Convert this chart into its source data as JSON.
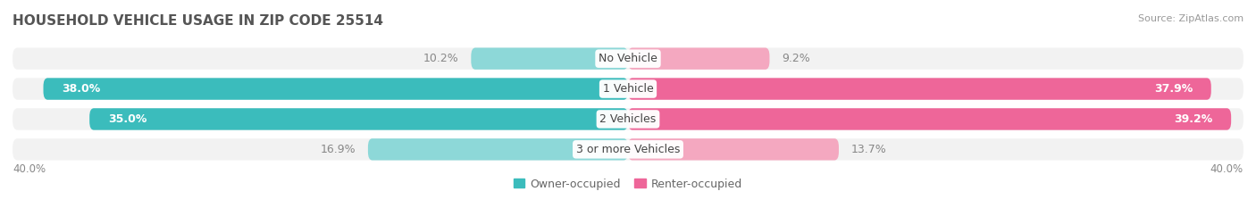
{
  "title": "HOUSEHOLD VEHICLE USAGE IN ZIP CODE 25514",
  "source": "Source: ZipAtlas.com",
  "categories": [
    "No Vehicle",
    "1 Vehicle",
    "2 Vehicles",
    "3 or more Vehicles"
  ],
  "owner_values": [
    10.2,
    38.0,
    35.0,
    16.9
  ],
  "renter_values": [
    9.2,
    37.9,
    39.2,
    13.7
  ],
  "owner_color_light": "#8DD8D8",
  "owner_color_dark": "#3BBCBC",
  "renter_color_light": "#F4A8C0",
  "renter_color_dark": "#EE6699",
  "bg_bar_color": "#E8E8E8",
  "owner_label": "Owner-occupied",
  "renter_label": "Renter-occupied",
  "x_axis_label_left": "40.0%",
  "x_axis_label_right": "40.0%",
  "max_value": 40.0,
  "title_fontsize": 11,
  "source_fontsize": 8,
  "bar_height": 0.72,
  "background_color": "#FFFFFF",
  "value_threshold": 20,
  "label_fontsize": 9,
  "category_fontsize": 9
}
